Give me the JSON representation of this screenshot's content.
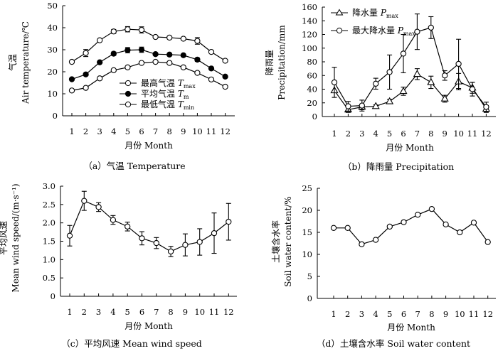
{
  "chart_data": [
    {
      "id": "a",
      "type": "line",
      "caption": "（a）气温 Temperature",
      "xlabel": "月份 Month",
      "ylabel": "气温 Air temperature/℃",
      "ylabel_zh": "气温",
      "ylabel_en": "Air temperature/℃",
      "categories": [
        "1",
        "2",
        "3",
        "4",
        "5",
        "6",
        "7",
        "8",
        "9",
        "10",
        "11",
        "12"
      ],
      "ylim": [
        0,
        50
      ],
      "yticks": [
        "0",
        "10",
        "20",
        "30",
        "40",
        "50"
      ],
      "series": [
        {
          "name": "最高气温 T_max",
          "legend_zh": "最高气温 ",
          "legend_var": "T",
          "legend_sub": "max",
          "marker": "open",
          "values": [
            24.5,
            28.5,
            34.3,
            38.3,
            39.3,
            39.0,
            35.8,
            35.5,
            35.0,
            34.0,
            29.0,
            25.0
          ],
          "errors": [
            0.5,
            1.6,
            0.5,
            0.9,
            1.2,
            1.4,
            0.5,
            0.6,
            0.5,
            1.5,
            0.5,
            0.5
          ]
        },
        {
          "name": "平均气温 T_m",
          "legend_zh": "平均气温 ",
          "legend_var": "T",
          "legend_sub": "m",
          "marker": "filled",
          "values": [
            16.6,
            18.8,
            24.3,
            28.2,
            29.8,
            30.0,
            28.0,
            27.8,
            27.5,
            25.5,
            21.5,
            17.8
          ],
          "errors": [
            0.5,
            0.5,
            0.5,
            0.8,
            1.2,
            1.2,
            0.5,
            0.5,
            0.5,
            0.8,
            0.5,
            0.5
          ]
        },
        {
          "name": "最低气温 T_min",
          "legend_zh": "最低气温 ",
          "legend_var": "T",
          "legend_sub": "min",
          "marker": "open",
          "values": [
            11.5,
            12.7,
            17.0,
            20.7,
            22.0,
            24.0,
            24.5,
            24.0,
            22.0,
            19.5,
            16.5,
            13.2
          ],
          "errors": [
            0.5,
            0.5,
            0.5,
            0.5,
            0.5,
            0.5,
            0.5,
            0.5,
            0.5,
            0.5,
            0.5,
            0.5
          ]
        }
      ]
    },
    {
      "id": "b",
      "type": "line",
      "caption": "（b）降雨量 Precipitation",
      "xlabel": "月份 Month",
      "ylabel": "降雨量 Precipitation/mm",
      "ylabel_zh": "降雨量",
      "ylabel_en": "Precipitation/mm",
      "categories": [
        "1",
        "2",
        "3",
        "4",
        "5",
        "6",
        "7",
        "8",
        "9",
        "10",
        "11",
        "12"
      ],
      "ylim": [
        0,
        160
      ],
      "yticks": [
        "0",
        "20",
        "40",
        "60",
        "80",
        "100",
        "120",
        "140",
        "160"
      ],
      "series": [
        {
          "name": "降水量 P_max",
          "legend_zh": "降水量 ",
          "legend_var": "P",
          "legend_sub": "max",
          "marker": "triangle",
          "values": [
            38,
            10,
            14,
            15,
            22,
            37,
            62,
            50,
            26,
            51,
            42,
            11
          ],
          "errors": [
            10,
            4,
            4,
            2,
            3,
            6,
            8,
            9,
            5,
            12,
            8,
            5
          ]
        },
        {
          "name": "最大降水量 P_max",
          "legend_zh": "最大降水量 ",
          "legend_var": "P",
          "legend_sub": "max",
          "marker": "open",
          "values": [
            50,
            15,
            16,
            48,
            65,
            92,
            124,
            130,
            60,
            77,
            40,
            14
          ],
          "errors": [
            22,
            7,
            8,
            8,
            25,
            28,
            26,
            16,
            7,
            36,
            10,
            7
          ]
        }
      ]
    },
    {
      "id": "c",
      "type": "line",
      "caption": "（c）平均风速 Mean wind speed",
      "xlabel": "月份 Month",
      "ylabel": "平均风速 Mean wind speed/(m·s⁻¹)",
      "ylabel_zh": "平均风速",
      "ylabel_en": "Mean wind speed/(m·s⁻¹)",
      "categories": [
        "1",
        "2",
        "3",
        "4",
        "5",
        "6",
        "7",
        "8",
        "9",
        "10",
        "11",
        "12"
      ],
      "ylim": [
        0,
        3.0
      ],
      "yticks": [
        "0",
        "0.5",
        "1.0",
        "1.5",
        "2.0",
        "2.5",
        "3.0"
      ],
      "series": [
        {
          "name": "平均风速",
          "marker": "open",
          "values": [
            1.65,
            2.6,
            2.43,
            2.08,
            1.9,
            1.58,
            1.45,
            1.22,
            1.4,
            1.48,
            1.72,
            2.03
          ],
          "errors": [
            0.28,
            0.26,
            0.12,
            0.12,
            0.12,
            0.18,
            0.15,
            0.14,
            0.3,
            0.36,
            0.55,
            0.5
          ]
        }
      ]
    },
    {
      "id": "d",
      "type": "line",
      "caption": "（d）土壤含水率 Soil water content",
      "xlabel": "月份 Month",
      "ylabel": "土壤含水率 Soil water content/%",
      "ylabel_zh": "土壤含水率",
      "ylabel_en": "Soil water content/%",
      "categories": [
        "1",
        "2",
        "3",
        "4",
        "5",
        "6",
        "7",
        "8",
        "9",
        "10",
        "11",
        "12"
      ],
      "ylim": [
        0,
        25
      ],
      "yticks": [
        "0",
        "5",
        "10",
        "15",
        "20",
        "25"
      ],
      "series": [
        {
          "name": "土壤含水率",
          "marker": "open",
          "values": [
            16.0,
            16.0,
            12.3,
            13.3,
            16.3,
            17.3,
            19.0,
            20.3,
            16.8,
            15.0,
            17.2,
            12.8
          ],
          "errors": [
            0.2,
            0.2,
            0.2,
            0.2,
            0.2,
            0.2,
            0.2,
            0.2,
            0.2,
            0.2,
            0.2,
            0.2
          ]
        }
      ]
    }
  ]
}
